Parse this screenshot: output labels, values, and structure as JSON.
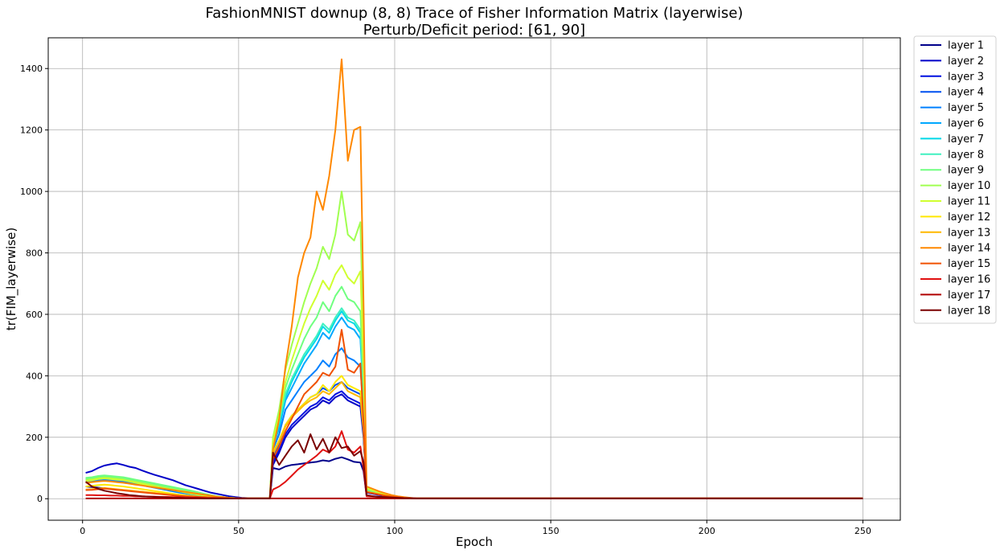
{
  "chart_data": {
    "type": "line",
    "title": "FashionMNIST downup (8, 8) Trace of Fisher Information Matrix (layerwise)",
    "subtitle": "Perturb/Deficit period: [61, 90]",
    "xlabel": "Epoch",
    "ylabel": "tr(FIM_layerwise)",
    "xlim": [
      -11,
      262
    ],
    "ylim": [
      -70,
      1500
    ],
    "xticks": [
      0,
      50,
      100,
      150,
      200,
      250
    ],
    "yticks": [
      0,
      200,
      400,
      600,
      800,
      1000,
      1200,
      1400
    ],
    "grid": true,
    "legend_position": "outside-right-top",
    "x": [
      1,
      3,
      5,
      7,
      9,
      11,
      13,
      15,
      17,
      19,
      21,
      23,
      25,
      27,
      29,
      31,
      33,
      35,
      37,
      39,
      41,
      43,
      45,
      47,
      49,
      51,
      53,
      55,
      57,
      59,
      60,
      61,
      63,
      65,
      67,
      69,
      71,
      73,
      75,
      77,
      79,
      81,
      83,
      85,
      87,
      89,
      90,
      91,
      93,
      95,
      97,
      99,
      101,
      103,
      105,
      107,
      110,
      130,
      150,
      170,
      190,
      210,
      230,
      250
    ],
    "series": [
      {
        "name": "layer 1",
        "color": "#00008b",
        "values": [
          40,
          38,
          36,
          34,
          32,
          30,
          28,
          26,
          24,
          22,
          20,
          18,
          16,
          14,
          12,
          10,
          9,
          8,
          7,
          6,
          5,
          4,
          3,
          2,
          2,
          1,
          1,
          1,
          1,
          1,
          1,
          100,
          95,
          105,
          110,
          112,
          115,
          118,
          120,
          125,
          122,
          130,
          135,
          128,
          120,
          118,
          90,
          10,
          8,
          6,
          5,
          4,
          3,
          2,
          2,
          1,
          1,
          1,
          1,
          1,
          1,
          1,
          1,
          1
        ]
      },
      {
        "name": "layer 2",
        "color": "#0000c8",
        "values": [
          84,
          90,
          100,
          108,
          112,
          115,
          110,
          104,
          100,
          92,
          85,
          78,
          72,
          66,
          60,
          52,
          44,
          38,
          32,
          26,
          20,
          16,
          12,
          8,
          5,
          3,
          2,
          1,
          1,
          1,
          1,
          110,
          150,
          200,
          230,
          250,
          270,
          290,
          300,
          320,
          310,
          330,
          340,
          320,
          310,
          300,
          200,
          20,
          16,
          12,
          9,
          6,
          4,
          3,
          2,
          1,
          1,
          1,
          1,
          1,
          1,
          1,
          1,
          1
        ]
      },
      {
        "name": "layer 3",
        "color": "#0010e0",
        "values": [
          60,
          62,
          64,
          66,
          64,
          62,
          60,
          56,
          52,
          48,
          44,
          40,
          36,
          32,
          28,
          24,
          20,
          16,
          12,
          10,
          8,
          6,
          4,
          3,
          2,
          1,
          1,
          1,
          1,
          1,
          1,
          120,
          160,
          210,
          240,
          260,
          280,
          300,
          310,
          330,
          320,
          340,
          350,
          330,
          320,
          310,
          210,
          22,
          18,
          14,
          10,
          7,
          5,
          3,
          2,
          1,
          1,
          1,
          1,
          1,
          1,
          1,
          1,
          1
        ]
      },
      {
        "name": "layer 4",
        "color": "#0050f0",
        "values": [
          58,
          60,
          62,
          64,
          62,
          60,
          58,
          54,
          50,
          46,
          42,
          38,
          34,
          30,
          26,
          22,
          18,
          14,
          11,
          9,
          7,
          5,
          4,
          3,
          2,
          1,
          1,
          1,
          1,
          1,
          1,
          140,
          180,
          240,
          270,
          290,
          310,
          330,
          340,
          360,
          350,
          370,
          380,
          360,
          350,
          340,
          230,
          24,
          19,
          15,
          11,
          8,
          5,
          3,
          2,
          1,
          1,
          1,
          1,
          1,
          1,
          1,
          1,
          1
        ]
      },
      {
        "name": "layer 5",
        "color": "#0080ff",
        "values": [
          56,
          58,
          60,
          62,
          60,
          58,
          56,
          52,
          48,
          44,
          40,
          36,
          32,
          28,
          24,
          20,
          17,
          14,
          11,
          9,
          7,
          5,
          4,
          3,
          2,
          1,
          1,
          1,
          1,
          1,
          1,
          160,
          210,
          290,
          320,
          350,
          380,
          400,
          420,
          450,
          430,
          470,
          490,
          460,
          450,
          430,
          280,
          26,
          21,
          16,
          12,
          8,
          6,
          4,
          2,
          1,
          1,
          1,
          1,
          1,
          1,
          1,
          1,
          1
        ]
      },
      {
        "name": "layer 6",
        "color": "#00a8ff",
        "values": [
          62,
          64,
          66,
          68,
          66,
          64,
          62,
          58,
          54,
          50,
          46,
          42,
          38,
          34,
          30,
          26,
          22,
          18,
          14,
          11,
          8,
          6,
          4,
          3,
          2,
          1,
          1,
          1,
          1,
          1,
          1,
          170,
          230,
          320,
          360,
          400,
          440,
          470,
          500,
          540,
          520,
          560,
          590,
          560,
          550,
          520,
          330,
          28,
          22,
          17,
          13,
          9,
          6,
          4,
          2,
          1,
          1,
          1,
          1,
          1,
          1,
          1,
          1,
          1
        ]
      },
      {
        "name": "layer 7",
        "color": "#00d8e8",
        "values": [
          64,
          66,
          70,
          72,
          70,
          68,
          66,
          62,
          58,
          54,
          50,
          46,
          42,
          38,
          34,
          30,
          26,
          22,
          18,
          14,
          10,
          7,
          5,
          3,
          2,
          1,
          1,
          1,
          1,
          1,
          1,
          175,
          240,
          330,
          380,
          420,
          460,
          490,
          520,
          560,
          540,
          580,
          610,
          580,
          570,
          540,
          340,
          29,
          23,
          18,
          13,
          9,
          6,
          4,
          2,
          1,
          1,
          1,
          1,
          1,
          1,
          1,
          1,
          1
        ]
      },
      {
        "name": "layer 8",
        "color": "#40f0c0",
        "values": [
          66,
          68,
          72,
          74,
          72,
          70,
          68,
          64,
          60,
          56,
          52,
          48,
          44,
          40,
          36,
          32,
          28,
          24,
          20,
          15,
          11,
          8,
          5,
          3,
          2,
          1,
          1,
          1,
          1,
          1,
          1,
          180,
          250,
          340,
          390,
          430,
          470,
          500,
          530,
          570,
          550,
          590,
          620,
          590,
          580,
          550,
          350,
          30,
          24,
          18,
          14,
          10,
          7,
          4,
          2,
          1,
          1,
          1,
          1,
          1,
          1,
          1,
          1,
          1
        ]
      },
      {
        "name": "layer 9",
        "color": "#70ff80",
        "values": [
          68,
          70,
          74,
          76,
          74,
          72,
          70,
          66,
          62,
          58,
          54,
          50,
          46,
          42,
          38,
          34,
          30,
          26,
          21,
          16,
          12,
          8,
          5,
          3,
          2,
          1,
          1,
          1,
          1,
          1,
          1,
          185,
          260,
          360,
          420,
          470,
          520,
          560,
          590,
          640,
          610,
          660,
          690,
          650,
          640,
          610,
          380,
          32,
          25,
          19,
          14,
          10,
          7,
          4,
          2,
          1,
          1,
          1,
          1,
          1,
          1,
          1,
          1,
          1
        ]
      },
      {
        "name": "layer 10",
        "color": "#a0ff50",
        "values": [
          62,
          64,
          68,
          70,
          68,
          66,
          64,
          60,
          56,
          52,
          48,
          44,
          40,
          36,
          32,
          28,
          24,
          20,
          16,
          12,
          9,
          6,
          4,
          3,
          2,
          1,
          1,
          1,
          1,
          1,
          1,
          200,
          290,
          420,
          500,
          570,
          640,
          700,
          750,
          820,
          780,
          860,
          1000,
          860,
          840,
          900,
          500,
          36,
          28,
          21,
          15,
          11,
          7,
          4,
          2,
          1,
          1,
          1,
          1,
          1,
          1,
          1,
          1,
          1
        ]
      },
      {
        "name": "layer 11",
        "color": "#d0ff30",
        "values": [
          58,
          60,
          64,
          66,
          64,
          62,
          60,
          56,
          52,
          48,
          44,
          40,
          36,
          32,
          28,
          24,
          20,
          16,
          13,
          10,
          7,
          5,
          4,
          3,
          2,
          1,
          1,
          1,
          1,
          1,
          1,
          190,
          270,
          380,
          450,
          510,
          570,
          620,
          660,
          710,
          680,
          730,
          760,
          720,
          700,
          740,
          440,
          34,
          27,
          20,
          15,
          10,
          7,
          4,
          2,
          1,
          1,
          1,
          1,
          1,
          1,
          1,
          1,
          1
        ]
      },
      {
        "name": "layer 12",
        "color": "#ffe800",
        "values": [
          40,
          42,
          44,
          46,
          44,
          42,
          40,
          37,
          34,
          31,
          28,
          25,
          22,
          19,
          16,
          13,
          11,
          9,
          7,
          5,
          4,
          3,
          2,
          2,
          1,
          1,
          1,
          1,
          1,
          1,
          1,
          150,
          190,
          240,
          270,
          290,
          310,
          330,
          340,
          370,
          350,
          380,
          400,
          370,
          360,
          350,
          230,
          24,
          19,
          15,
          11,
          8,
          5,
          3,
          2,
          1,
          1,
          1,
          1,
          1,
          1,
          1,
          1,
          1
        ]
      },
      {
        "name": "layer 13",
        "color": "#ffb800",
        "values": [
          30,
          31,
          33,
          35,
          33,
          31,
          29,
          27,
          25,
          23,
          21,
          19,
          17,
          15,
          13,
          11,
          9,
          7,
          6,
          5,
          4,
          3,
          2,
          2,
          1,
          1,
          1,
          1,
          1,
          1,
          1,
          145,
          185,
          235,
          265,
          285,
          305,
          320,
          330,
          350,
          340,
          360,
          380,
          350,
          340,
          330,
          220,
          22,
          18,
          14,
          10,
          7,
          5,
          3,
          2,
          1,
          1,
          1,
          1,
          1,
          1,
          1,
          1,
          1
        ]
      },
      {
        "name": "layer 14",
        "color": "#ff8800",
        "values": [
          52,
          54,
          56,
          58,
          56,
          54,
          52,
          49,
          46,
          43,
          40,
          37,
          34,
          31,
          28,
          25,
          22,
          19,
          16,
          13,
          10,
          7,
          5,
          3,
          2,
          1,
          1,
          1,
          1,
          1,
          1,
          160,
          260,
          430,
          560,
          720,
          800,
          850,
          1000,
          940,
          1050,
          1200,
          1430,
          1100,
          1200,
          1210,
          640,
          40,
          32,
          24,
          18,
          12,
          8,
          5,
          3,
          1,
          1,
          1,
          1,
          1,
          1,
          1,
          1,
          1
        ]
      },
      {
        "name": "layer 15",
        "color": "#f05000",
        "values": [
          28,
          29,
          31,
          33,
          31,
          29,
          27,
          25,
          23,
          21,
          19,
          17,
          15,
          13,
          11,
          9,
          8,
          7,
          6,
          5,
          4,
          3,
          2,
          2,
          1,
          1,
          1,
          1,
          1,
          1,
          1,
          130,
          170,
          220,
          260,
          300,
          340,
          360,
          380,
          410,
          400,
          430,
          550,
          420,
          410,
          440,
          250,
          22,
          18,
          14,
          10,
          7,
          5,
          3,
          2,
          1,
          1,
          1,
          1,
          1,
          1,
          1,
          1,
          1
        ]
      },
      {
        "name": "layer 16",
        "color": "#e01010",
        "values": [
          12,
          12,
          11,
          11,
          10,
          10,
          9,
          9,
          8,
          8,
          7,
          7,
          6,
          6,
          5,
          5,
          4,
          4,
          3,
          3,
          2,
          2,
          2,
          1,
          1,
          1,
          1,
          1,
          1,
          1,
          1,
          30,
          40,
          55,
          75,
          95,
          110,
          125,
          140,
          160,
          150,
          170,
          220,
          160,
          150,
          170,
          100,
          8,
          7,
          6,
          5,
          4,
          3,
          2,
          2,
          1,
          1,
          1,
          1,
          1,
          1,
          1,
          1,
          1
        ]
      },
      {
        "name": "layer 17",
        "color": "#b00000",
        "values": [
          1,
          1,
          1,
          1,
          1,
          1,
          1,
          1,
          1,
          1,
          1,
          1,
          1,
          1,
          1,
          1,
          1,
          1,
          1,
          1,
          1,
          1,
          1,
          1,
          1,
          1,
          1,
          1,
          1,
          1,
          1,
          1,
          1,
          1,
          1,
          1,
          1,
          1,
          1,
          1,
          1,
          1,
          1,
          1,
          1,
          1,
          1,
          1,
          1,
          1,
          1,
          1,
          1,
          1,
          1,
          1,
          1,
          1,
          1,
          1,
          1,
          1,
          1,
          1
        ]
      },
      {
        "name": "layer 18",
        "color": "#7a0000",
        "values": [
          55,
          40,
          32,
          26,
          22,
          18,
          15,
          12,
          10,
          8,
          7,
          6,
          5,
          4,
          3,
          3,
          2,
          2,
          2,
          1,
          1,
          1,
          1,
          1,
          1,
          1,
          1,
          1,
          1,
          1,
          1,
          150,
          110,
          140,
          170,
          190,
          150,
          210,
          160,
          195,
          150,
          200,
          165,
          170,
          140,
          155,
          120,
          12,
          8,
          6,
          5,
          4,
          3,
          2,
          2,
          1,
          1,
          1,
          1,
          1,
          1,
          1,
          1,
          1
        ]
      }
    ]
  }
}
